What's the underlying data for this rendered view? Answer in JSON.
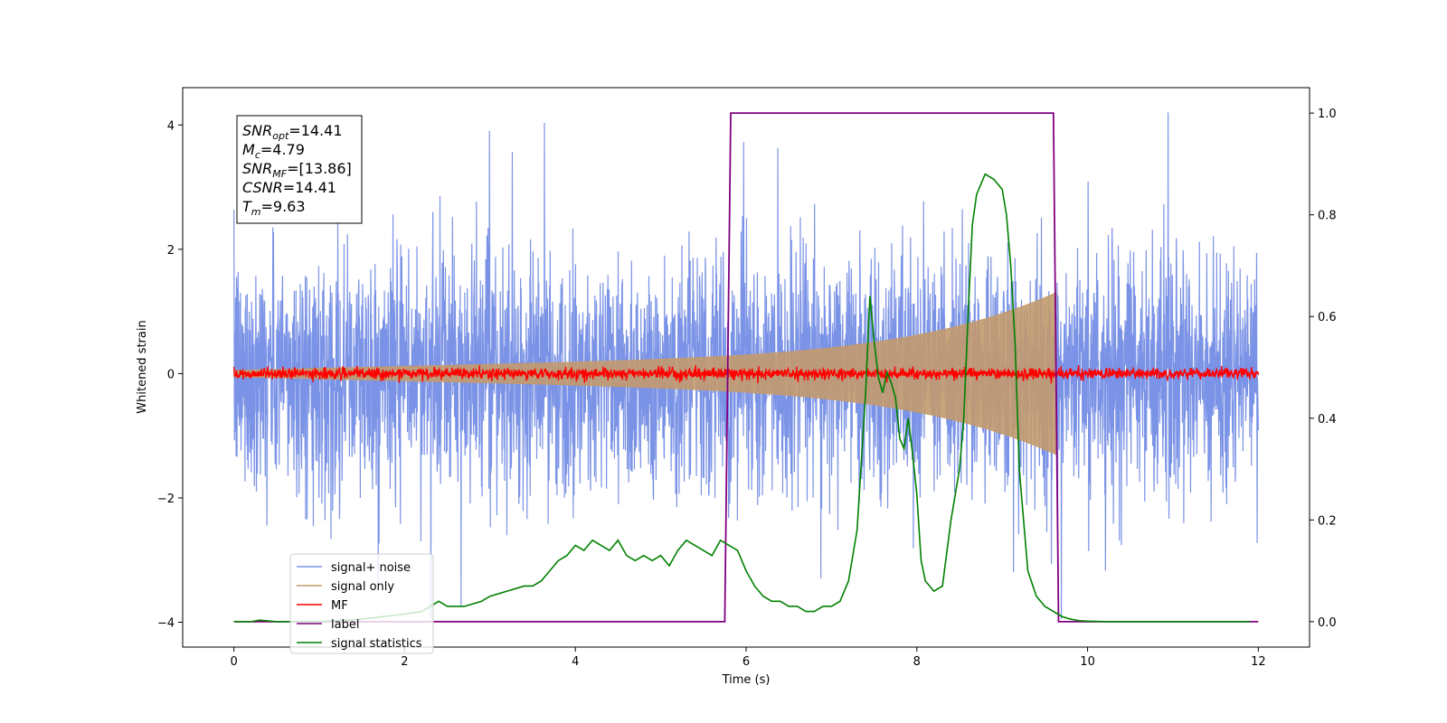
{
  "chart_data": {
    "type": "line",
    "xlabel": "Time (s)",
    "ylabel_left": "Whitened strain",
    "ylabel_right": "",
    "xlim": [
      -0.6,
      12.6
    ],
    "ylim_left": [
      -4.4,
      4.6
    ],
    "ylim_right": [
      -0.05,
      1.05
    ],
    "x_ticks": [
      0,
      2,
      4,
      6,
      8,
      10,
      12
    ],
    "y_ticks_left": [
      -4,
      -2,
      0,
      2,
      4
    ],
    "y_ticks_right": [
      0.0,
      0.2,
      0.4,
      0.6,
      0.8,
      1.0
    ],
    "grid": false,
    "legend_position": "lower-left",
    "info_box": {
      "lines": [
        {
          "sym": "SNR",
          "sub": "opt",
          "rest": "=14.41"
        },
        {
          "sym": "M",
          "sub": "c",
          "rest": "=4.79"
        },
        {
          "sym": "SNR",
          "sub": "MF",
          "rest": "=[13.86]"
        },
        {
          "sym": "CSNR",
          "sub": "",
          "rest": "=14.41"
        },
        {
          "sym": "T",
          "sub": "m",
          "rest": "=9.63"
        }
      ]
    },
    "series": [
      {
        "name": "signal+ noise",
        "color": "#7b93e6",
        "axis": "left",
        "description_range": {
          "t_start": 0,
          "t_end": 12,
          "typical_amplitude": 1.2,
          "peak_amplitude": 4.2
        }
      },
      {
        "name": "signal only",
        "color": "#c29a6e",
        "axis": "left",
        "envelope": {
          "t_start": 0,
          "t_end": 9.63,
          "amp_start": 0.05,
          "amp_end": 1.3
        }
      },
      {
        "name": "MF",
        "color": "#ff0000",
        "axis": "left",
        "noise_amplitude": 0.08
      },
      {
        "name": "label",
        "color": "#800080",
        "axis": "right",
        "x": [
          0,
          5.75,
          5.82,
          9.6,
          9.66,
          12
        ],
        "y": [
          0,
          0,
          1,
          1,
          0,
          0
        ]
      },
      {
        "name": "signal statistics",
        "color": "#008000",
        "axis": "right",
        "x": [
          0,
          0.2,
          0.3,
          0.5,
          1.0,
          1.5,
          2.0,
          2.2,
          2.4,
          2.5,
          2.7,
          2.9,
          3.0,
          3.2,
          3.4,
          3.5,
          3.6,
          3.7,
          3.8,
          3.9,
          4.0,
          4.1,
          4.2,
          4.3,
          4.4,
          4.5,
          4.6,
          4.7,
          4.8,
          4.9,
          5.0,
          5.1,
          5.2,
          5.3,
          5.4,
          5.5,
          5.6,
          5.7,
          5.8,
          5.9,
          6.0,
          6.1,
          6.2,
          6.3,
          6.4,
          6.5,
          6.6,
          6.7,
          6.8,
          6.9,
          7.0,
          7.1,
          7.2,
          7.3,
          7.4,
          7.45,
          7.5,
          7.55,
          7.6,
          7.65,
          7.7,
          7.75,
          7.8,
          7.85,
          7.9,
          7.95,
          8.0,
          8.05,
          8.1,
          8.2,
          8.3,
          8.4,
          8.5,
          8.55,
          8.6,
          8.65,
          8.7,
          8.75,
          8.8,
          8.9,
          9.0,
          9.05,
          9.1,
          9.15,
          9.2,
          9.3,
          9.4,
          9.5,
          9.6,
          9.7,
          9.8,
          9.9,
          10.0,
          10.2,
          10.5,
          11.0,
          11.5,
          11.9
        ],
        "y": [
          0,
          0,
          0.003,
          0,
          0.0,
          0.005,
          0.015,
          0.02,
          0.04,
          0.03,
          0.03,
          0.04,
          0.05,
          0.06,
          0.07,
          0.07,
          0.08,
          0.1,
          0.12,
          0.13,
          0.15,
          0.14,
          0.16,
          0.15,
          0.14,
          0.16,
          0.13,
          0.12,
          0.13,
          0.12,
          0.13,
          0.11,
          0.14,
          0.16,
          0.15,
          0.14,
          0.13,
          0.16,
          0.15,
          0.14,
          0.1,
          0.07,
          0.05,
          0.04,
          0.04,
          0.03,
          0.03,
          0.02,
          0.02,
          0.03,
          0.03,
          0.04,
          0.08,
          0.18,
          0.45,
          0.64,
          0.55,
          0.48,
          0.45,
          0.49,
          0.47,
          0.44,
          0.36,
          0.34,
          0.4,
          0.33,
          0.25,
          0.12,
          0.08,
          0.06,
          0.07,
          0.2,
          0.3,
          0.4,
          0.6,
          0.78,
          0.84,
          0.86,
          0.88,
          0.87,
          0.85,
          0.8,
          0.7,
          0.55,
          0.3,
          0.1,
          0.05,
          0.03,
          0.02,
          0.01,
          0.005,
          0.002,
          0.001,
          0,
          0,
          0,
          0,
          0
        ]
      }
    ]
  }
}
